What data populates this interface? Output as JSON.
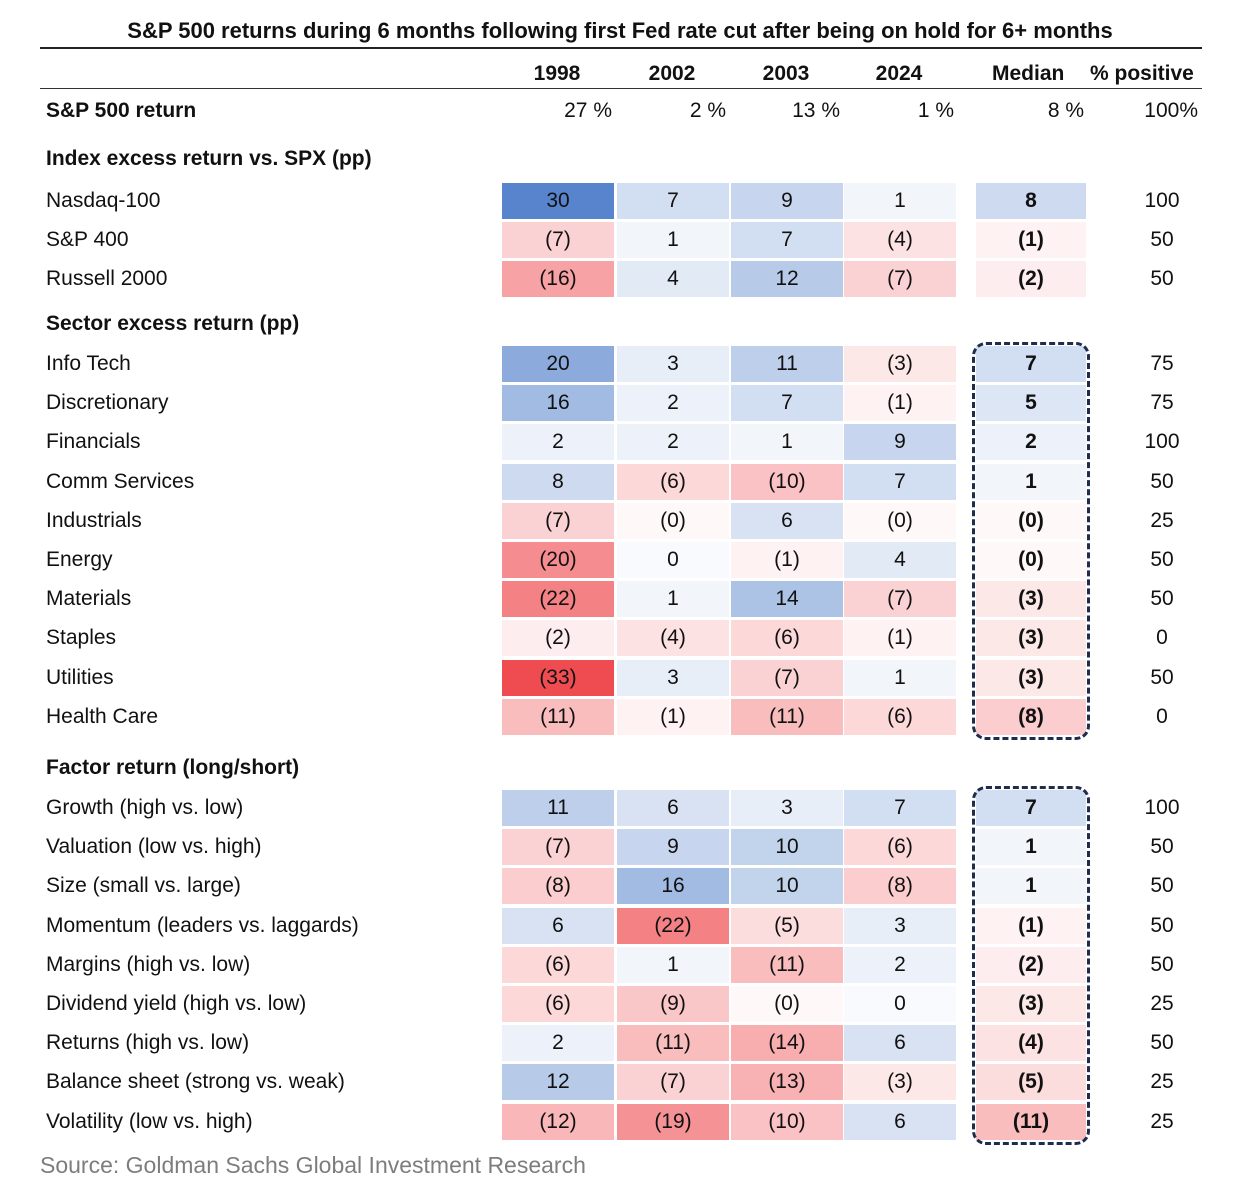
{
  "chart_data": {
    "type": "table",
    "title": "S&P 500 returns during 6 months following first Fed rate cut after being on hold for 6+ months",
    "columns": [
      "1998",
      "2002",
      "2003",
      "2024",
      "Median",
      "% positive"
    ],
    "summary": {
      "label": "S&P 500 return",
      "values": [
        "27 %",
        "2 %",
        "13 %",
        "1 %",
        "8 %",
        "100%"
      ]
    },
    "sections": [
      {
        "title": "Index excess return vs. SPX (pp)",
        "rows": [
          {
            "label": "Nasdaq-100",
            "values": [
              30,
              7,
              9,
              1
            ],
            "median": 8,
            "positive": "100"
          },
          {
            "label": "S&P 400",
            "values": [
              -7,
              1,
              7,
              -4
            ],
            "median": -1,
            "positive": "50"
          },
          {
            "label": "Russell 2000",
            "values": [
              -16,
              4,
              12,
              -7
            ],
            "median": -2,
            "positive": "50"
          }
        ]
      },
      {
        "title": "Sector excess return (pp)",
        "rows": [
          {
            "label": "Info Tech",
            "values": [
              20,
              3,
              11,
              -3
            ],
            "median": 7,
            "positive": "75"
          },
          {
            "label": "Discretionary",
            "values": [
              16,
              2,
              7,
              -1
            ],
            "median": 5,
            "positive": "75"
          },
          {
            "label": "Financials",
            "values": [
              2,
              2,
              1,
              9
            ],
            "median": 2,
            "positive": "100"
          },
          {
            "label": "Comm Services",
            "values": [
              8,
              -6,
              -10,
              7
            ],
            "median": 1,
            "positive": "50"
          },
          {
            "label": "Industrials",
            "values": [
              -7,
              0,
              6,
              0
            ],
            "median": 0,
            "positive": "25"
          },
          {
            "label": "Energy",
            "values": [
              -20,
              0,
              -1,
              4
            ],
            "median": 0,
            "positive": "50"
          },
          {
            "label": "Materials",
            "values": [
              -22,
              1,
              14,
              -7
            ],
            "median": -3,
            "positive": "50"
          },
          {
            "label": "Staples",
            "values": [
              -2,
              -4,
              -6,
              -1
            ],
            "median": -3,
            "positive": "0"
          },
          {
            "label": "Utilities",
            "values": [
              -33,
              3,
              -7,
              1
            ],
            "median": -3,
            "positive": "50"
          },
          {
            "label": "Health Care",
            "values": [
              -11,
              -1,
              -11,
              -6
            ],
            "median": -8,
            "positive": "0"
          }
        ]
      },
      {
        "title": "Factor return (long/short)",
        "rows": [
          {
            "label": "Growth (high vs. low)",
            "values": [
              11,
              6,
              3,
              7
            ],
            "median": 7,
            "positive": "100"
          },
          {
            "label": "Valuation (low vs. high)",
            "values": [
              -7,
              9,
              10,
              -6
            ],
            "median": 1,
            "positive": "50"
          },
          {
            "label": "Size (small vs. large)",
            "values": [
              -8,
              16,
              10,
              -8
            ],
            "median": 1,
            "positive": "50"
          },
          {
            "label": "Momentum (leaders vs. laggards)",
            "values": [
              6,
              -22,
              -5,
              3
            ],
            "median": -1,
            "positive": "50"
          },
          {
            "label": "Margins (high vs. low)",
            "values": [
              -6,
              1,
              -11,
              2
            ],
            "median": -2,
            "positive": "50"
          },
          {
            "label": "Dividend yield (high vs. low)",
            "values": [
              -6,
              -9,
              0,
              0
            ],
            "median": -3,
            "positive": "25"
          },
          {
            "label": "Returns (high vs. low)",
            "values": [
              2,
              -11,
              -14,
              6
            ],
            "median": -4,
            "positive": "50"
          },
          {
            "label": "Balance sheet (strong vs. weak)",
            "values": [
              12,
              -7,
              -13,
              -3
            ],
            "median": -5,
            "positive": "25"
          },
          {
            "label": "Volatility (low vs. high)",
            "values": [
              -12,
              -19,
              -10,
              6
            ],
            "median": -11,
            "positive": "25"
          }
        ]
      }
    ],
    "colors": {
      "positive": "#4a7bc8",
      "negative": "#ef4a4f",
      "neutral": "#ffffff"
    }
  },
  "source": "Source: Goldman Sachs Global Investment Research"
}
